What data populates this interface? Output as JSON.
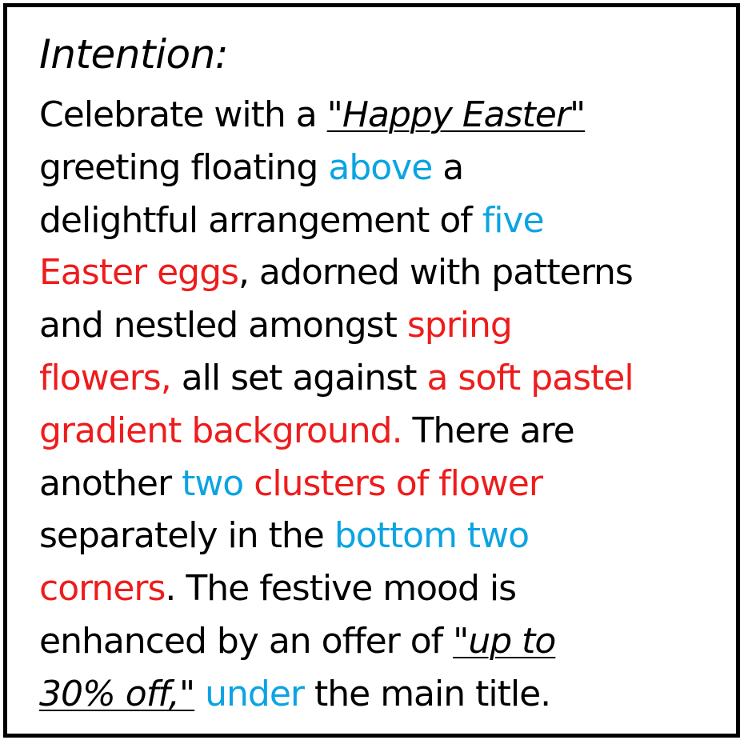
{
  "heading": "Intention:",
  "colors": {
    "text": "#000000",
    "blue": "#0ba4e3",
    "red": "#ee1c1c",
    "border": "#000000"
  },
  "lines": [
    [
      {
        "t": "Celebrate with a ",
        "s": "c-black"
      },
      {
        "t": "\"Happy Easter\"",
        "s": "quote c-black"
      }
    ],
    [
      {
        "t": "greeting floating ",
        "s": "c-black"
      },
      {
        "t": "above",
        "s": "c-blue"
      },
      {
        "t": " a",
        "s": "c-black"
      }
    ],
    [
      {
        "t": "delightful arrangement of ",
        "s": "c-black"
      },
      {
        "t": "five",
        "s": "c-blue"
      }
    ],
    [
      {
        "t": "Easter eggs",
        "s": "c-red"
      },
      {
        "t": ", adorned with patterns",
        "s": "c-black"
      }
    ],
    [
      {
        "t": "and nestled amongst ",
        "s": "c-black"
      },
      {
        "t": "spring",
        "s": "c-red"
      }
    ],
    [
      {
        "t": "flowers,",
        "s": "c-red"
      },
      {
        "t": " all set against ",
        "s": "c-black"
      },
      {
        "t": "a soft pastel",
        "s": "c-red"
      }
    ],
    [
      {
        "t": "gradient background.",
        "s": "c-red"
      },
      {
        "t": " There are",
        "s": "c-black"
      }
    ],
    [
      {
        "t": "another ",
        "s": "c-black"
      },
      {
        "t": "two",
        "s": "c-blue"
      },
      {
        "t": " clusters of flower",
        "s": "c-red"
      }
    ],
    [
      {
        "t": "separately in the ",
        "s": "c-black"
      },
      {
        "t": "bottom two",
        "s": "c-blue"
      }
    ],
    [
      {
        "t": "corners",
        "s": "c-red"
      },
      {
        "t": ". The festive mood is",
        "s": "c-black"
      }
    ],
    [
      {
        "t": "enhanced by an offer of ",
        "s": "c-black"
      },
      {
        "t": "\"up to",
        "s": "quote c-black"
      }
    ],
    [
      {
        "t": "30% off,\"",
        "s": "quote c-black"
      },
      {
        "t": " ",
        "s": "c-black"
      },
      {
        "t": "under",
        "s": "c-blue"
      },
      {
        "t": " the main title.",
        "s": "c-black"
      }
    ]
  ]
}
